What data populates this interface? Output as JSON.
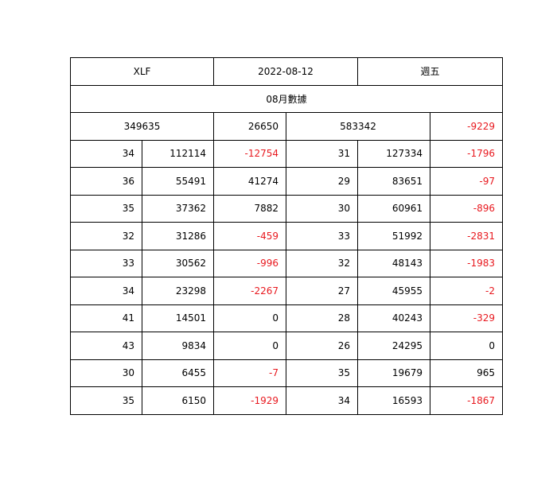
{
  "header": {
    "ticker": "XLF",
    "date": "2022-08-12",
    "weekday": "週五"
  },
  "subtitle": "08月數據",
  "summary": {
    "total_left": "349635",
    "change_left": "26650",
    "total_right": "583342",
    "change_right": "-9229"
  },
  "rows": [
    {
      "l_num": "34",
      "l_val": "112114",
      "l_chg": "-12754",
      "r_num": "31",
      "r_val": "127334",
      "r_chg": "-1796"
    },
    {
      "l_num": "36",
      "l_val": "55491",
      "l_chg": "41274",
      "r_num": "29",
      "r_val": "83651",
      "r_chg": "-97"
    },
    {
      "l_num": "35",
      "l_val": "37362",
      "l_chg": "7882",
      "r_num": "30",
      "r_val": "60961",
      "r_chg": "-896"
    },
    {
      "l_num": "32",
      "l_val": "31286",
      "l_chg": "-459",
      "r_num": "33",
      "r_val": "51992",
      "r_chg": "-2831"
    },
    {
      "l_num": "33",
      "l_val": "30562",
      "l_chg": "-996",
      "r_num": "32",
      "r_val": "48143",
      "r_chg": "-1983"
    },
    {
      "l_num": "34",
      "l_val": "23298",
      "l_chg": "-2267",
      "r_num": "27",
      "r_val": "45955",
      "r_chg": "-2"
    },
    {
      "l_num": "41",
      "l_val": "14501",
      "l_chg": "0",
      "r_num": "28",
      "r_val": "40243",
      "r_chg": "-329"
    },
    {
      "l_num": "43",
      "l_val": "9834",
      "l_chg": "0",
      "r_num": "26",
      "r_val": "24295",
      "r_chg": "0"
    },
    {
      "l_num": "30",
      "l_val": "6455",
      "l_chg": "-7",
      "r_num": "35",
      "r_val": "19679",
      "r_chg": "965"
    },
    {
      "l_num": "35",
      "l_val": "6150",
      "l_chg": "-1929",
      "r_num": "34",
      "r_val": "16593",
      "r_chg": "-1867"
    }
  ],
  "colors": {
    "negative": "#e8191f",
    "text": "#000000",
    "border": "#000000",
    "background": "#ffffff"
  }
}
